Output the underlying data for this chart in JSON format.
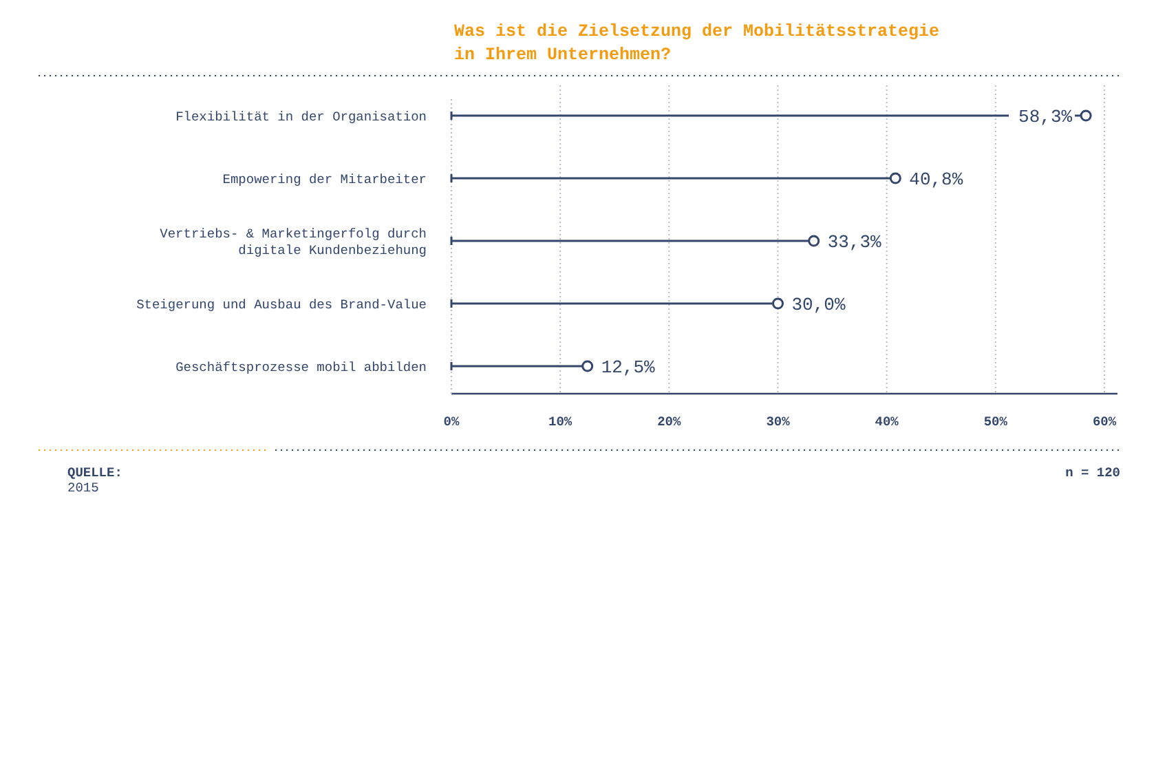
{
  "chart_data": {
    "type": "lollipop",
    "orientation": "horizontal",
    "title": "Was ist die Zielsetzung der Mobilitätsstrategie in Ihrem Unternehmen?",
    "categories": [
      "Flexibilität in der Organisation",
      "Empowering der Mitarbeiter",
      "Vertriebs- & Marketingerfolg durch digitale Kundenbeziehung",
      "Steigerung und Ausbau des Brand-Value",
      "Geschäftsprozesse mobil abbilden"
    ],
    "values": [
      58.3,
      40.8,
      33.3,
      30.0,
      12.5
    ],
    "value_labels": [
      "58,3%",
      "40,8%",
      "33,3%",
      "30,0%",
      "12,5%"
    ],
    "color": "#34466b",
    "marker": "circle",
    "grid": "x",
    "xlim": [
      0,
      61.2
    ],
    "xticks": [
      {
        "value": 0,
        "label": "0%"
      },
      {
        "value": 10,
        "label": "10%"
      },
      {
        "value": 20,
        "label": "20%"
      },
      {
        "value": 30,
        "label": "30%"
      },
      {
        "value": 40,
        "label": "40%"
      },
      {
        "value": 50,
        "label": "50%"
      },
      {
        "value": 60,
        "label": "60%"
      }
    ],
    "annotations": [
      "QUELLE:",
      "2015",
      "n = 120"
    ]
  }
}
